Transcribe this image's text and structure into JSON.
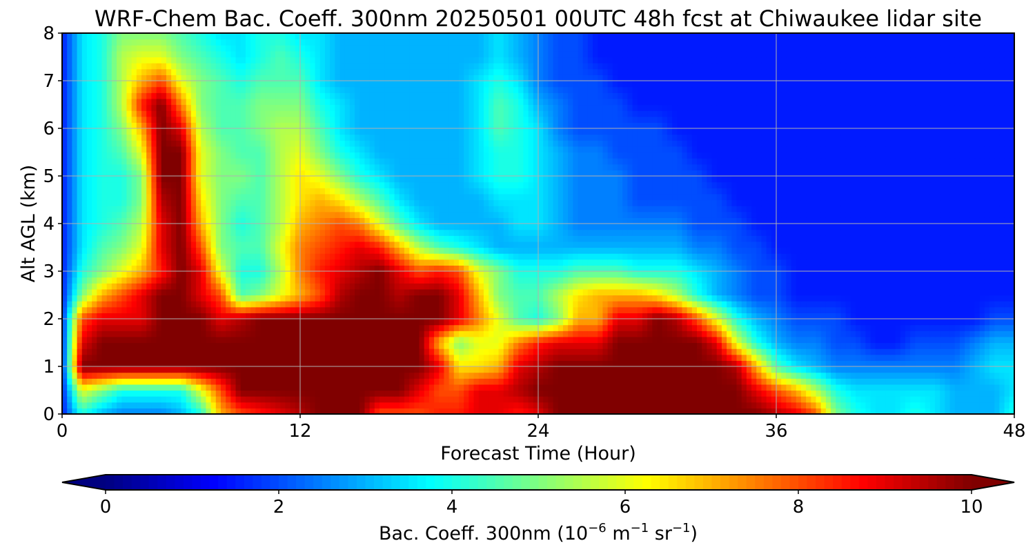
{
  "chart_data": {
    "type": "heatmap",
    "title": "WRF-Chem Bac. Coeff. 300nm  20250501 00UTC 48h fcst at Chiwaukee lidar site",
    "xlabel": "Forecast Time (Hour)",
    "ylabel": "Alt AGL (km)",
    "xlim": [
      0,
      48
    ],
    "ylim": [
      0,
      8
    ],
    "x_ticks": [
      0,
      12,
      24,
      36,
      48
    ],
    "x_tick_labels": [
      "0",
      "12",
      "24",
      "36",
      "48"
    ],
    "y_ticks": [
      0,
      1,
      2,
      3,
      4,
      5,
      6,
      7,
      8
    ],
    "y_tick_labels": [
      "0",
      "1",
      "2",
      "3",
      "4",
      "5",
      "6",
      "7",
      "8"
    ],
    "grid": true,
    "colormap": "jet",
    "colorbar": {
      "orientation": "horizontal",
      "range": [
        0,
        10
      ],
      "extend": "both",
      "ticks": [
        0,
        2,
        4,
        6,
        8,
        10
      ],
      "tick_labels": [
        "0",
        "2",
        "4",
        "6",
        "8",
        "10"
      ],
      "label_main": "Bac. Coeff. 300nm  (10",
      "label_exp1": "−6",
      "label_mid": " m",
      "label_exp2": "−1",
      "label_mid2": " sr",
      "label_exp3": "−1",
      "label_end": ")"
    },
    "x": [
      0,
      1,
      2,
      3,
      4,
      5,
      6,
      7,
      8,
      9,
      10,
      11,
      12,
      13,
      14,
      15,
      16,
      17,
      18,
      19,
      20,
      21,
      22,
      23,
      24,
      25,
      26,
      27,
      28,
      29,
      30,
      31,
      32,
      33,
      34,
      35,
      36,
      37,
      38,
      39,
      40,
      41,
      42,
      43,
      44,
      45,
      46,
      47,
      48
    ],
    "y": [
      0,
      0.5,
      1,
      1.5,
      2,
      2.5,
      3,
      3.5,
      4,
      4.5,
      5,
      5.5,
      6,
      6.5,
      7,
      7.5,
      8
    ],
    "z": [
      [
        1.5,
        4,
        3,
        2.5,
        2.5,
        2.5,
        3,
        4,
        7,
        8,
        8.5,
        9,
        9.5,
        10,
        10,
        10,
        8,
        8,
        8,
        8.5,
        8.5,
        9,
        9,
        8.5,
        9,
        10,
        10,
        10,
        10,
        10,
        10,
        10,
        10,
        10,
        10,
        10,
        9.5,
        9,
        8,
        5,
        4,
        3.5,
        3.5,
        4,
        3.5,
        3,
        3,
        3,
        4
      ],
      [
        1.5,
        6,
        5,
        4,
        4,
        4,
        4,
        6,
        8,
        10,
        10,
        10,
        10,
        10,
        10,
        10,
        10,
        10,
        9,
        8,
        8,
        9,
        9,
        9.5,
        10,
        10,
        10,
        10,
        10,
        10,
        10,
        10,
        10,
        10,
        10,
        9,
        8,
        7,
        5.5,
        4,
        3.5,
        3.5,
        3.5,
        3.5,
        3.5,
        3,
        3,
        3,
        3.5
      ],
      [
        1.5,
        10,
        10,
        10,
        10,
        10,
        10,
        10,
        10,
        10,
        10,
        10,
        10,
        10,
        10,
        10,
        10,
        10,
        10,
        9,
        6.5,
        6.5,
        7,
        9,
        9.5,
        10,
        10,
        10,
        10,
        10,
        10,
        10,
        10,
        10,
        9.5,
        7,
        4.5,
        3.5,
        3,
        2.5,
        2.5,
        2.5,
        2.5,
        2.5,
        2.5,
        2.5,
        3,
        3.5,
        3.5
      ],
      [
        1.5,
        9,
        10,
        10,
        10,
        10,
        10,
        10,
        10,
        10,
        10,
        10,
        10,
        10,
        10,
        10,
        10,
        10,
        10,
        7,
        5,
        6,
        6,
        7.5,
        8.5,
        9,
        9,
        9,
        10,
        10,
        10,
        10,
        10,
        9,
        6,
        4,
        3,
        2.5,
        2.5,
        2,
        2,
        1.5,
        1.5,
        2,
        2,
        2,
        2.5,
        3,
        3
      ],
      [
        1.5,
        8,
        9,
        9,
        9,
        10,
        10,
        10,
        9,
        9.5,
        10,
        10,
        10,
        10,
        10,
        10,
        10,
        10,
        10,
        10,
        9,
        7.5,
        6,
        4.5,
        4,
        5,
        7,
        7,
        9,
        9,
        10,
        9.5,
        8,
        6,
        4,
        3,
        2.5,
        2,
        2,
        2,
        1.5,
        1.5,
        1.5,
        1.5,
        1.5,
        1.5,
        1.5,
        2,
        2
      ],
      [
        1.5,
        5,
        7,
        8,
        9,
        10,
        10,
        9,
        8,
        4.5,
        5,
        6,
        7,
        8,
        9.5,
        10,
        10,
        9.5,
        10,
        10,
        9,
        7,
        5,
        4.5,
        4.5,
        5.5,
        6.5,
        7,
        7,
        7,
        6.5,
        5.5,
        4,
        3,
        2.5,
        2,
        2,
        1.5,
        1.5,
        1.5,
        1.5,
        1.5,
        1.5,
        1.5,
        1.5,
        1.5,
        1.5,
        1.5,
        1.5
      ],
      [
        1.5,
        4,
        5,
        6,
        7,
        8.5,
        10,
        9,
        6,
        4,
        4,
        5.5,
        7.5,
        8.5,
        9,
        9.5,
        10,
        9,
        8,
        8.5,
        8,
        6,
        5,
        4,
        4,
        4,
        4.5,
        4.5,
        4.5,
        4,
        4,
        4,
        3.5,
        3,
        2.5,
        2,
        2,
        1.5,
        1.5,
        1.5,
        1.5,
        1.5,
        1.5,
        1.5,
        1.5,
        1.5,
        1.5,
        1.5,
        1.5
      ],
      [
        1.5,
        3.5,
        4.5,
        5,
        6,
        9,
        10,
        8,
        5,
        4.5,
        4.5,
        6,
        7.5,
        8,
        8.5,
        9,
        8.5,
        7,
        5.5,
        4.5,
        4,
        3.5,
        3,
        3,
        3,
        3,
        3,
        3,
        3,
        3,
        3,
        3,
        2.5,
        2.5,
        2,
        2,
        1.5,
        1.5,
        1.5,
        1.5,
        1.5,
        1.5,
        1.5,
        1.5,
        1.5,
        1.5,
        1.5,
        1.5,
        1.5
      ],
      [
        1.5,
        3.5,
        4,
        4.5,
        5.5,
        9,
        10,
        7,
        5,
        4,
        4.5,
        5.5,
        7,
        7.5,
        8,
        7.5,
        6,
        4.5,
        3.5,
        3,
        3,
        3,
        3,
        3.5,
        3.5,
        3,
        2.5,
        2.5,
        2.5,
        2.5,
        2.5,
        2.5,
        2,
        2,
        2,
        1.5,
        1.5,
        1.5,
        1.5,
        1.5,
        1.5,
        1.5,
        1.5,
        1.5,
        1.5,
        1.5,
        1.5,
        1.5,
        1.5
      ],
      [
        1.5,
        3.5,
        4,
        4,
        5,
        9.5,
        10,
        6.5,
        5,
        4.5,
        4.5,
        5.5,
        6.5,
        7,
        6.5,
        5.5,
        4.5,
        3.5,
        3,
        3,
        3,
        3,
        3.5,
        3.5,
        3.5,
        3,
        2.5,
        2.5,
        2.5,
        2,
        2,
        2,
        2,
        2,
        1.5,
        1.5,
        1.5,
        1.5,
        1.5,
        1.5,
        1.5,
        1.5,
        1.5,
        1.5,
        1.5,
        1.5,
        1.5,
        1.5,
        1.5
      ],
      [
        1.5,
        3.5,
        4,
        4,
        5,
        10,
        10,
        6,
        5,
        5,
        4.5,
        5.5,
        6.5,
        6,
        5,
        4,
        3.5,
        3,
        3,
        3,
        3,
        3.5,
        4,
        4,
        3.5,
        3,
        2.5,
        2.5,
        2.5,
        2,
        2,
        2,
        2,
        1.5,
        1.5,
        1.5,
        1.5,
        1.5,
        1.5,
        1.5,
        1.5,
        1.5,
        1.5,
        1.5,
        1.5,
        1.5,
        1.5,
        1.5,
        1.5
      ],
      [
        1.5,
        3.5,
        4,
        4.5,
        6,
        10,
        10,
        6,
        5,
        4.5,
        4.5,
        5.5,
        6,
        5,
        4,
        3.5,
        3,
        3,
        3,
        3,
        3,
        3.5,
        4,
        4,
        3.5,
        3,
        2.5,
        2.5,
        2,
        2,
        2,
        2,
        1.5,
        1.5,
        1.5,
        1.5,
        1.5,
        1.5,
        1.5,
        1.5,
        1.5,
        1.5,
        1.5,
        1.5,
        1.5,
        1.5,
        1.5,
        1.5,
        1.5
      ],
      [
        1.5,
        3.5,
        4,
        5,
        7,
        10,
        9,
        5.5,
        4.5,
        4.5,
        5,
        5.5,
        5.5,
        4.5,
        3.5,
        3,
        3,
        3,
        3,
        3,
        3,
        3.5,
        4.5,
        4,
        3.5,
        2.5,
        2,
        2,
        2,
        2,
        2,
        1.5,
        1.5,
        1.5,
        1.5,
        1.5,
        1.5,
        1.5,
        1.5,
        1.5,
        1.5,
        1.5,
        1.5,
        1.5,
        1.5,
        1.5,
        1.5,
        1.5,
        1.5
      ],
      [
        1.5,
        3.5,
        4,
        5.5,
        8.5,
        10,
        7.5,
        5,
        4.5,
        4.5,
        5,
        5,
        5,
        4,
        3.5,
        3,
        3,
        3,
        3,
        3,
        3,
        3.5,
        4.5,
        4,
        3,
        2.5,
        2,
        2,
        2,
        1.5,
        1.5,
        1.5,
        1.5,
        1.5,
        1.5,
        1.5,
        1.5,
        1.5,
        1.5,
        1.5,
        1.5,
        1.5,
        1.5,
        1.5,
        1.5,
        1.5,
        1.5,
        1.5,
        1.5
      ],
      [
        1.5,
        3.5,
        4,
        5.5,
        7,
        8,
        6,
        5,
        4.5,
        4,
        4.5,
        4.5,
        4.5,
        3.5,
        3,
        3,
        3,
        3,
        3,
        3,
        3,
        3.5,
        4,
        3.5,
        2.5,
        2,
        2,
        2,
        1.5,
        1.5,
        1.5,
        1.5,
        1.5,
        1.5,
        1.5,
        1.5,
        1.5,
        1.5,
        1.5,
        1.5,
        1.5,
        1.5,
        1.5,
        1.5,
        1.5,
        1.5,
        1.5,
        1.5,
        1.5
      ],
      [
        1.5,
        3.5,
        4,
        5.5,
        6,
        6,
        5,
        4.5,
        4,
        3.5,
        4,
        4.5,
        4,
        3.5,
        3,
        3,
        3,
        3,
        3,
        3,
        3,
        3,
        3.5,
        3,
        2.5,
        2,
        2,
        1.5,
        1.5,
        1.5,
        1.5,
        1.5,
        1.5,
        1.5,
        1.5,
        1.5,
        1.5,
        1.5,
        1.5,
        1.5,
        1.5,
        1.5,
        1.5,
        1.5,
        1.5,
        1.5,
        1.5,
        1.5,
        1.5
      ],
      [
        1.5,
        3.5,
        4,
        5,
        5,
        5,
        4.5,
        4,
        3.5,
        3.5,
        4,
        4,
        3.5,
        3.5,
        3,
        3,
        3,
        3,
        3,
        3,
        3,
        3,
        3.5,
        3,
        2.5,
        2,
        2,
        1.5,
        1.5,
        1.5,
        1.5,
        1.5,
        1.5,
        1.5,
        1.5,
        1.5,
        1.5,
        1.5,
        1.5,
        1.5,
        1.5,
        1.5,
        1.5,
        1.5,
        1.5,
        1.5,
        1.5,
        1.5,
        1.5
      ]
    ]
  }
}
